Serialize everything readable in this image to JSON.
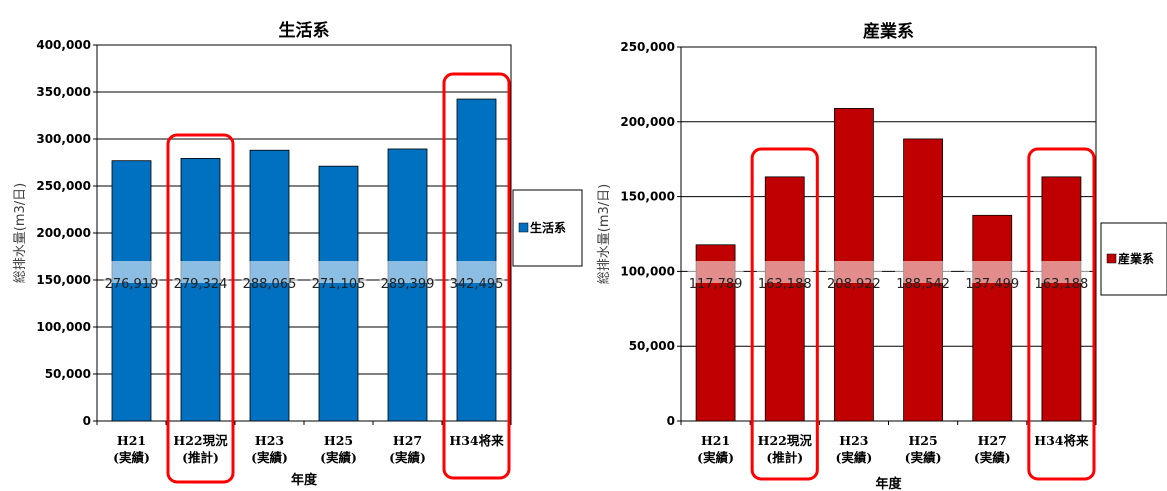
{
  "chart_data": [
    {
      "type": "bar",
      "title": "生活系",
      "xlabel": "年度",
      "ylabel": "総排水量(m3/日)",
      "ylim": [
        0,
        400000
      ],
      "yticks": [
        "0",
        "50,000",
        "100,000",
        "150,000",
        "200,000",
        "250,000",
        "300,000",
        "350,000",
        "400,000"
      ],
      "grid": true,
      "legend_position": "right",
      "categories": [
        {
          "line1": "H21",
          "line2": "(実績)"
        },
        {
          "line1": "H22現況",
          "line2": "(推計)"
        },
        {
          "line1": "H23",
          "line2": "(実績)"
        },
        {
          "line1": "H25",
          "line2": "(実績)"
        },
        {
          "line1": "H27",
          "line2": "(実績)"
        },
        {
          "line1": "H34将来",
          "line2": ""
        }
      ],
      "series": [
        {
          "name": "生活系",
          "color": "#0070C0",
          "values": [
            276919,
            279324,
            288065,
            271105,
            289399,
            342495
          ],
          "labels": [
            "276,919",
            "279,324",
            "288,065",
            "271,105",
            "289,399",
            "342,495"
          ]
        }
      ],
      "highlighted_categories": [
        1,
        5
      ],
      "highlight_color": "#FF0000"
    },
    {
      "type": "bar",
      "title": "産業系",
      "xlabel": "年度",
      "ylabel": "総排水量(m3/日)",
      "ylim": [
        0,
        250000
      ],
      "yticks": [
        "0",
        "50,000",
        "100,000",
        "150,000",
        "200,000",
        "250,000"
      ],
      "grid": true,
      "legend_position": "right",
      "categories": [
        {
          "line1": "H21",
          "line2": "(実績)"
        },
        {
          "line1": "H22現況",
          "line2": "(推計)"
        },
        {
          "line1": "H23",
          "line2": "(実績)"
        },
        {
          "line1": "H25",
          "line2": "(実績)"
        },
        {
          "line1": "H27",
          "line2": "(実績)"
        },
        {
          "line1": "H34将来",
          "line2": ""
        }
      ],
      "series": [
        {
          "name": "産業系",
          "color": "#C00000",
          "values": [
            117789,
            163188,
            208922,
            188542,
            137499,
            163188
          ],
          "labels": [
            "117,789",
            "163,188",
            "208,922",
            "188,542",
            "137,499",
            "163,188"
          ]
        }
      ],
      "highlighted_categories": [
        1,
        5
      ],
      "highlight_color": "#FF0000"
    }
  ]
}
